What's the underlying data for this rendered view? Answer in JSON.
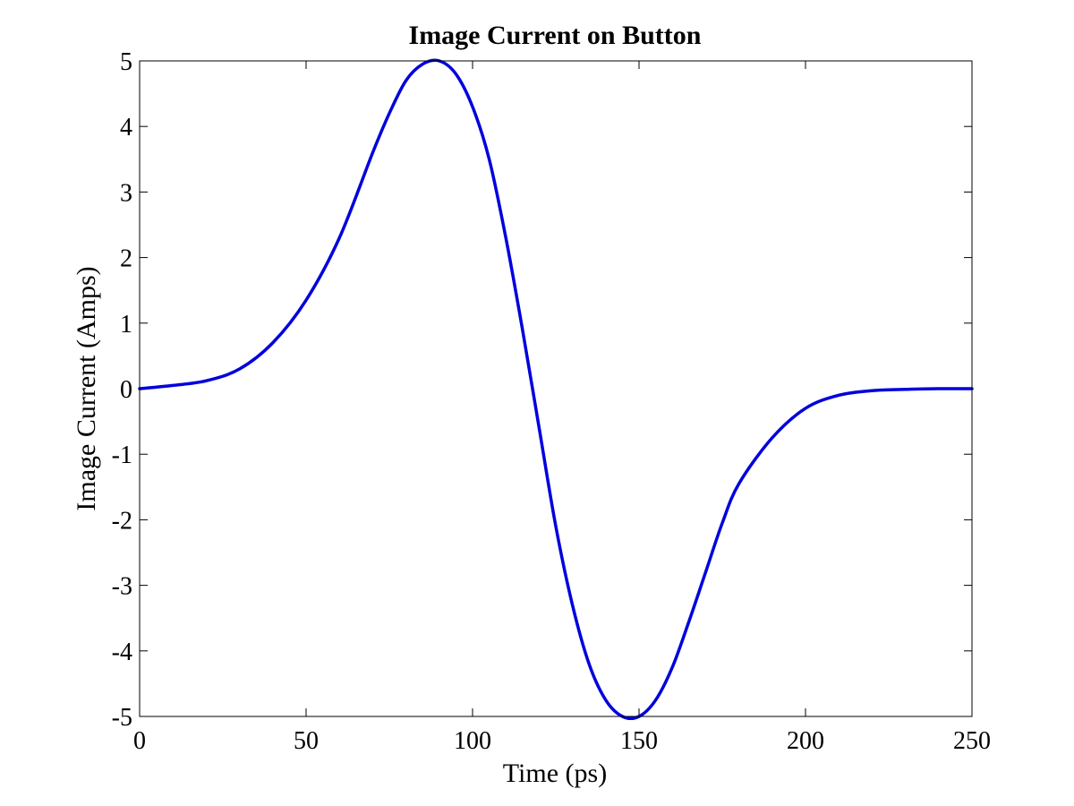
{
  "chart_data": {
    "type": "line",
    "title": "Image Current on Button",
    "xlabel": "Time (ps)",
    "ylabel": "Image Current (Amps)",
    "xlim": [
      0,
      250
    ],
    "ylim": [
      -5,
      5
    ],
    "xticks": [
      0,
      50,
      100,
      150,
      200,
      250
    ],
    "yticks": [
      5,
      4,
      3,
      2,
      1,
      0,
      -1,
      -2,
      -3,
      -4,
      -5
    ],
    "xtick_labels": [
      "0",
      "50",
      "100",
      "150",
      "200",
      "250"
    ],
    "ytick_labels": [
      "5",
      "4",
      "3",
      "2",
      "1",
      "0",
      "-1",
      "-2",
      "-3",
      "-4",
      "-5"
    ],
    "grid": false,
    "legend": false,
    "series": [
      {
        "color": "#0000dd",
        "x": [
          0,
          10,
          20,
          30,
          40,
          50,
          60,
          70,
          75,
          80,
          85,
          90,
          95,
          100,
          105,
          110,
          115,
          120,
          125,
          130,
          135,
          140,
          145,
          150,
          155,
          160,
          165,
          170,
          175,
          180,
          190,
          200,
          210,
          220,
          230,
          240,
          250
        ],
        "y": [
          0.0,
          0.05,
          0.12,
          0.3,
          0.7,
          1.35,
          2.3,
          3.6,
          4.2,
          4.7,
          4.95,
          5.0,
          4.8,
          4.3,
          3.5,
          2.3,
          0.9,
          -0.6,
          -2.1,
          -3.3,
          -4.2,
          -4.75,
          -5.0,
          -5.0,
          -4.75,
          -4.25,
          -3.55,
          -2.8,
          -2.05,
          -1.45,
          -0.75,
          -0.3,
          -0.1,
          -0.03,
          -0.01,
          0.0,
          0.0
        ]
      }
    ]
  }
}
